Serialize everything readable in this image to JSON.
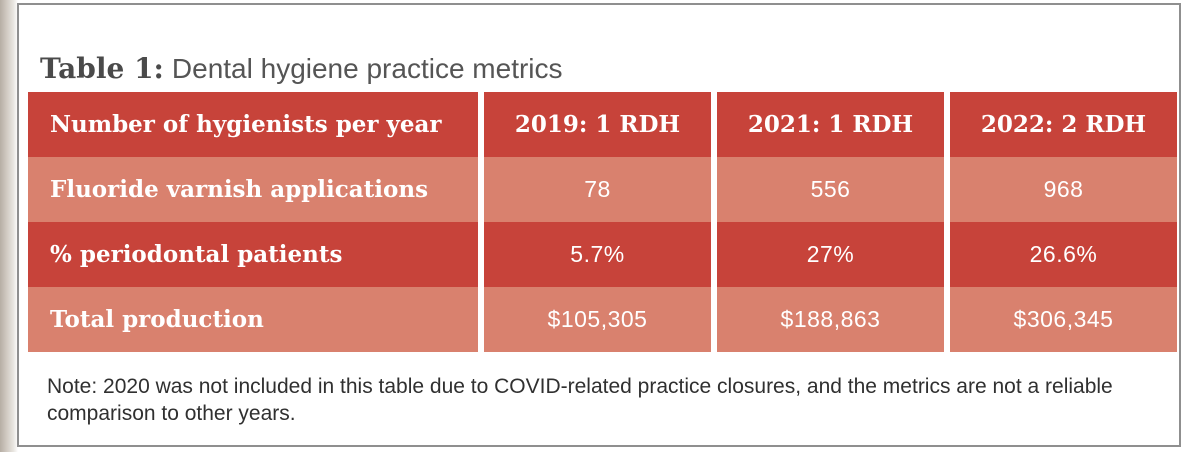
{
  "title": {
    "prefix": "Table 1:",
    "rest": "Dental hygiene practice metrics"
  },
  "table": {
    "header": {
      "label": "Number of hygienists per year",
      "columns": [
        "2019: 1 RDH",
        "2021: 1 RDH",
        "2022: 2 RDH"
      ]
    },
    "rows": [
      {
        "label": "Fluoride varnish applications",
        "values": [
          "78",
          "556",
          "968"
        ]
      },
      {
        "label": "% periodontal patients",
        "values": [
          "5.7%",
          "27%",
          "26.6%"
        ]
      },
      {
        "label": "Total production",
        "values": [
          "$105,305",
          "$188,863",
          "$306,345"
        ]
      }
    ]
  },
  "note": "Note: 2020 was not included in this table due to COVID-related practice closures, and the metrics are not a reliable comparison to other years.",
  "colors": {
    "header_row_red": "#c7433a",
    "alt_row_salmon": "#d9816e",
    "title_gray": "#4f4f4f",
    "note_text": "#303030",
    "card_border_gray": "#8f8f8f",
    "cell_text_white": "#ffffff"
  },
  "chart_data": {
    "type": "table",
    "title": "Table 1: Dental hygiene practice metrics",
    "columns": [
      "Number of hygienists per year",
      "2019: 1 RDH",
      "2021: 1 RDH",
      "2022: 2 RDH"
    ],
    "rows": [
      [
        "Fluoride varnish applications",
        78,
        556,
        968
      ],
      [
        "% periodontal patients",
        "5.7%",
        "27%",
        "26.6%"
      ],
      [
        "Total production",
        "$105,305",
        "$188,863",
        "$306,345"
      ]
    ]
  }
}
